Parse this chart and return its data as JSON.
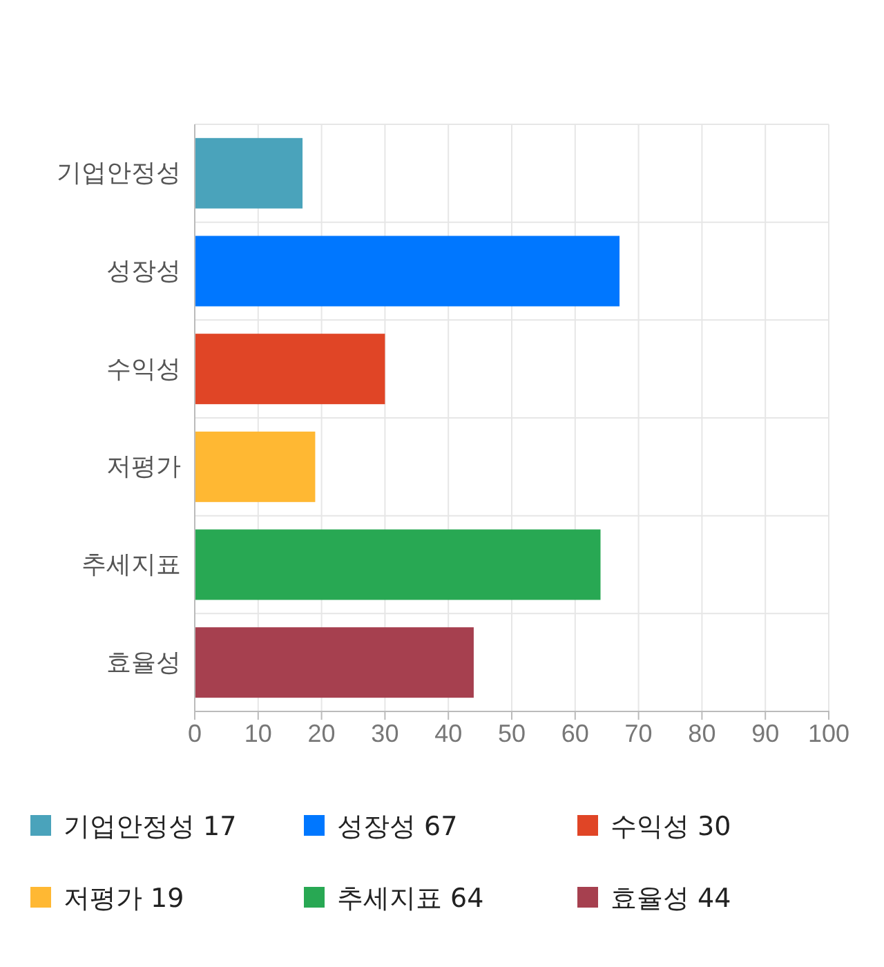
{
  "chart_data": {
    "type": "bar",
    "orientation": "horizontal",
    "stacked": true,
    "categories": [
      "기업안정성",
      "성장성",
      "수익성",
      "저평가",
      "추세지표",
      "효율성"
    ],
    "series": [
      {
        "name": "기업안정성 17",
        "color": "#4aa3bb",
        "values": [
          17,
          null,
          null,
          null,
          null,
          null
        ]
      },
      {
        "name": "성장성 67",
        "color": "#0077ff",
        "values": [
          null,
          67,
          null,
          null,
          null,
          null
        ]
      },
      {
        "name": "수익성 30",
        "color": "#e04526",
        "values": [
          null,
          null,
          30,
          null,
          null,
          null
        ]
      },
      {
        "name": "저평가 19",
        "color": "#ffb833",
        "values": [
          null,
          null,
          null,
          19,
          null,
          null
        ]
      },
      {
        "name": "추세지표 64",
        "color": "#28a853",
        "values": [
          null,
          null,
          null,
          null,
          64,
          null
        ]
      },
      {
        "name": "효율성 44",
        "color": "#a6404f",
        "values": [
          null,
          null,
          null,
          null,
          null,
          44
        ]
      }
    ],
    "xlim": [
      0,
      100
    ],
    "xticks": [
      0,
      10,
      20,
      30,
      40,
      50,
      60,
      70,
      80,
      90,
      100
    ],
    "grid": true,
    "legend": "bottom"
  }
}
